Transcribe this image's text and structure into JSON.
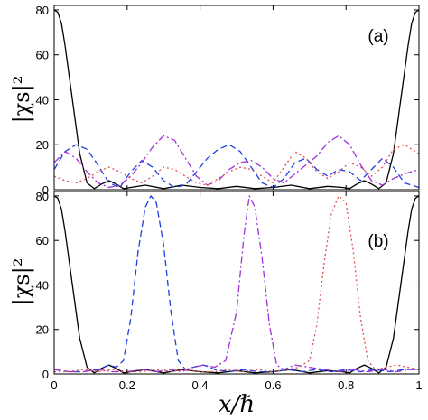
{
  "chart_data": [
    {
      "type": "line",
      "panel_label": "(a)",
      "ylabel": "|χs|²",
      "xlim": [
        0,
        1
      ],
      "ylim": [
        0,
        82
      ],
      "yticks": [
        0,
        20,
        40,
        60,
        80
      ],
      "xticks": [],
      "series": [
        {
          "style": "solid",
          "color": "#000000",
          "x": [
            0,
            0.01,
            0.02,
            0.03,
            0.05,
            0.07,
            0.09,
            0.11,
            0.13,
            0.15,
            0.17,
            0.19,
            0.21,
            0.25,
            0.3,
            0.35,
            0.4,
            0.45,
            0.5,
            0.55,
            0.6,
            0.65,
            0.7,
            0.75,
            0.79,
            0.81,
            0.83,
            0.85,
            0.87,
            0.89,
            0.91,
            0.93,
            0.95,
            0.97,
            0.98,
            0.99,
            1
          ],
          "y": [
            80,
            79,
            74,
            64,
            40,
            16,
            3,
            0.5,
            2.5,
            4,
            2.5,
            0.5,
            1,
            2,
            0.5,
            2,
            1,
            0.5,
            1.5,
            0.5,
            1,
            2,
            0.5,
            1.5,
            1,
            0.5,
            2.5,
            4,
            2.5,
            0.5,
            3,
            16,
            40,
            64,
            74,
            79,
            80
          ]
        },
        {
          "style": "dashed",
          "color": "#1f3fe0",
          "x": [
            0,
            0.03,
            0.06,
            0.09,
            0.12,
            0.15,
            0.18,
            0.21,
            0.24,
            0.27,
            0.3,
            0.33,
            0.36,
            0.39,
            0.42,
            0.45,
            0.48,
            0.51,
            0.54,
            0.57,
            0.6,
            0.63,
            0.66,
            0.69,
            0.72,
            0.75,
            0.78,
            0.81,
            0.84,
            0.87,
            0.9,
            0.93,
            0.96,
            1
          ],
          "y": [
            9,
            17,
            20,
            18,
            11,
            3,
            1,
            8,
            13,
            10,
            4,
            1,
            2,
            8,
            14,
            18,
            20,
            17,
            10,
            3,
            1,
            5,
            12,
            14,
            9,
            6,
            9,
            8,
            4,
            9,
            14,
            10,
            3,
            1
          ]
        },
        {
          "style": "dashdot",
          "color": "#a030d8",
          "x": [
            0,
            0.03,
            0.06,
            0.09,
            0.12,
            0.15,
            0.18,
            0.21,
            0.24,
            0.27,
            0.3,
            0.33,
            0.36,
            0.39,
            0.42,
            0.45,
            0.48,
            0.51,
            0.54,
            0.57,
            0.6,
            0.63,
            0.66,
            0.69,
            0.72,
            0.75,
            0.78,
            0.81,
            0.84,
            0.87,
            0.9,
            0.93,
            0.96,
            1
          ],
          "y": [
            12,
            17,
            14,
            8,
            3,
            1,
            2,
            6,
            12,
            19,
            24,
            22,
            14,
            6,
            2,
            4,
            9,
            12,
            13,
            10,
            5,
            3,
            7,
            11,
            15,
            21,
            24,
            20,
            11,
            4,
            2,
            5,
            7,
            9
          ]
        },
        {
          "style": "dotted",
          "color": "#e05050",
          "x": [
            0,
            0.03,
            0.06,
            0.09,
            0.12,
            0.15,
            0.18,
            0.21,
            0.24,
            0.27,
            0.3,
            0.33,
            0.36,
            0.39,
            0.42,
            0.45,
            0.48,
            0.51,
            0.54,
            0.57,
            0.6,
            0.63,
            0.66,
            0.69,
            0.72,
            0.75,
            0.78,
            0.81,
            0.84,
            0.87,
            0.9,
            0.93,
            0.96,
            1
          ],
          "y": [
            6,
            4,
            3,
            5,
            8,
            10,
            8,
            5,
            3,
            6,
            10,
            9,
            6,
            3,
            2,
            5,
            8,
            10,
            9,
            6,
            3,
            10,
            17,
            14,
            8,
            5,
            8,
            12,
            10,
            6,
            10,
            18,
            20,
            16
          ]
        }
      ]
    },
    {
      "type": "line",
      "panel_label": "(b)",
      "ylabel": "|χs|²",
      "xlabel": "x/ℏ",
      "xlim": [
        0,
        1
      ],
      "ylim": [
        0,
        82
      ],
      "yticks": [
        0,
        20,
        40,
        60,
        80
      ],
      "xticks": [
        0,
        0.2,
        0.4,
        0.6,
        0.8,
        1
      ],
      "xticklabels": [
        "0",
        "0.2",
        "0.4",
        "0.6",
        "0.8",
        "1"
      ],
      "series": [
        {
          "style": "solid",
          "color": "#000000",
          "x": [
            0,
            0.01,
            0.02,
            0.03,
            0.05,
            0.07,
            0.09,
            0.11,
            0.13,
            0.15,
            0.17,
            0.19,
            0.21,
            0.25,
            0.3,
            0.35,
            0.4,
            0.45,
            0.5,
            0.55,
            0.6,
            0.65,
            0.7,
            0.75,
            0.79,
            0.81,
            0.83,
            0.85,
            0.87,
            0.89,
            0.91,
            0.93,
            0.95,
            0.97,
            0.98,
            0.99,
            1
          ],
          "y": [
            80,
            79,
            74,
            64,
            40,
            16,
            3,
            0.5,
            2.5,
            4,
            2.5,
            0.5,
            1,
            2,
            0.5,
            2,
            1,
            0.5,
            1.5,
            0.5,
            1,
            2,
            0.5,
            1.5,
            1,
            0.5,
            2.5,
            4,
            2.5,
            0.5,
            3,
            16,
            40,
            64,
            74,
            79,
            80
          ]
        },
        {
          "style": "dashed",
          "color": "#1f3fe0",
          "x": [
            0,
            0.04,
            0.08,
            0.12,
            0.15,
            0.17,
            0.19,
            0.21,
            0.23,
            0.25,
            0.265,
            0.28,
            0.3,
            0.32,
            0.34,
            0.36,
            0.38,
            0.41,
            0.44,
            0.48,
            0.52,
            0.56,
            0.6,
            0.64,
            0.68,
            0.72,
            0.76,
            0.8,
            0.84,
            0.88,
            0.92,
            0.96,
            1
          ],
          "y": [
            2,
            1,
            1,
            2,
            4,
            3,
            6,
            25,
            55,
            75,
            80,
            77,
            58,
            28,
            6,
            2,
            3,
            4,
            2,
            1,
            2,
            1,
            1,
            2,
            1,
            2,
            1,
            2,
            1,
            2,
            1,
            2,
            2
          ]
        },
        {
          "style": "dashdot",
          "color": "#a030d8",
          "x": [
            0,
            0.04,
            0.08,
            0.12,
            0.16,
            0.2,
            0.24,
            0.28,
            0.32,
            0.35,
            0.38,
            0.41,
            0.44,
            0.47,
            0.5,
            0.52,
            0.535,
            0.55,
            0.57,
            0.59,
            0.61,
            0.63,
            0.66,
            0.7,
            0.74,
            0.78,
            0.82,
            0.86,
            0.9,
            0.94,
            0.97,
            1
          ],
          "y": [
            2,
            1,
            1,
            2,
            1,
            1,
            2,
            1,
            2,
            1,
            3,
            4,
            3,
            6,
            28,
            62,
            80,
            75,
            52,
            22,
            4,
            2,
            4,
            3,
            2,
            1,
            2,
            1,
            2,
            1,
            2,
            2
          ]
        },
        {
          "style": "dotted",
          "color": "#e05050",
          "x": [
            0,
            0.04,
            0.08,
            0.12,
            0.16,
            0.2,
            0.24,
            0.28,
            0.32,
            0.36,
            0.4,
            0.44,
            0.48,
            0.52,
            0.56,
            0.6,
            0.64,
            0.67,
            0.7,
            0.72,
            0.74,
            0.76,
            0.78,
            0.8,
            0.82,
            0.84,
            0.86,
            0.88,
            0.91,
            0.94,
            0.97,
            1
          ],
          "y": [
            1,
            1,
            2,
            1,
            2,
            1,
            1,
            2,
            1,
            2,
            1,
            1,
            2,
            1,
            2,
            1,
            2,
            3,
            6,
            22,
            50,
            72,
            80,
            77,
            55,
            25,
            6,
            2,
            3,
            4,
            3,
            2
          ]
        }
      ]
    }
  ]
}
